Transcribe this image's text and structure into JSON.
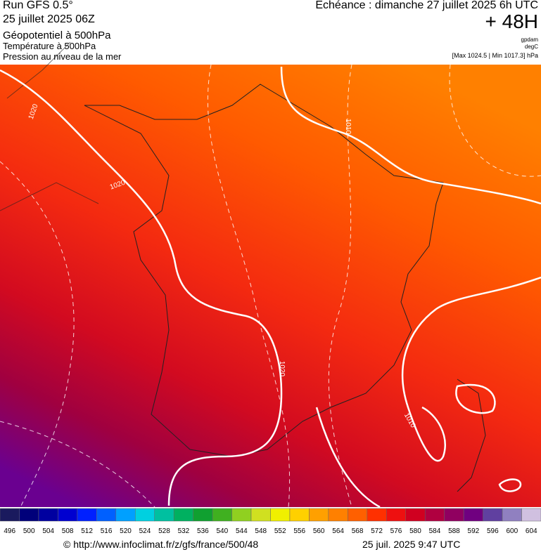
{
  "header": {
    "run": "Run GFS 0.5°",
    "run_date": "25 juillet 2025 06Z",
    "field_1": "Géopotentiel à 500hPa",
    "field_2": "Température à 500hPa",
    "field_3": "Pression au niveau de la mer",
    "forecast": "Echéance : dimanche 27 juillet 2025 6h UTC",
    "lead": "+ 48H",
    "unit_1": "gpdam",
    "unit_2": "degC",
    "pressure_range": "[Max 1024.5 | Min 1017.3] hPa"
  },
  "isobar_labels": [
    "1020",
    "1020",
    "1020",
    "1010",
    "1010"
  ],
  "colorbar": {
    "values": [
      496,
      500,
      504,
      508,
      512,
      516,
      520,
      524,
      528,
      532,
      536,
      540,
      544,
      548,
      552,
      556,
      560,
      564,
      568,
      572,
      576,
      580,
      584,
      588,
      592,
      596,
      600,
      604
    ],
    "colors": [
      "#1a1a5e",
      "#00007a",
      "#0000a0",
      "#0000d0",
      "#0020ff",
      "#0060ff",
      "#00a0ff",
      "#00d0e0",
      "#00c0a0",
      "#00b060",
      "#10a030",
      "#40b020",
      "#90d020",
      "#d0e020",
      "#f0f000",
      "#ffd000",
      "#ffa000",
      "#ff8000",
      "#ff6000",
      "#ff3000",
      "#ee1010",
      "#d00020",
      "#b00040",
      "#900060",
      "#700080",
      "#6040a0",
      "#9080c0",
      "#d0c0e0"
    ]
  },
  "footer": {
    "source": "© http://www.infoclimat.fr/z/gfs/france/500/48",
    "timestamp": "25 juil. 2025  9:47 UTC"
  }
}
